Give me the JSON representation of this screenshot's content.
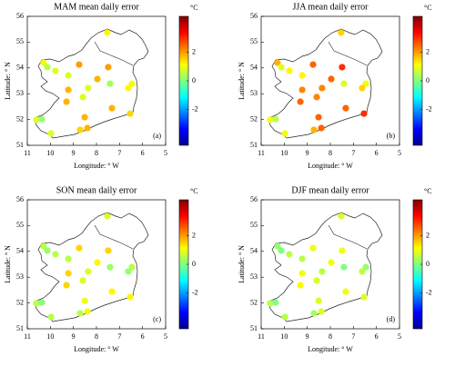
{
  "chart_data": [
    {
      "type": "scatter",
      "title": "MAM mean daily error",
      "xlabel": "Longitude: ° W",
      "ylabel": "Latitude: ° N",
      "annotation": "(a)",
      "colorbar_label": "°C",
      "colormap": "jet",
      "x": [
        7.53,
        10.29,
        10.13,
        9.78,
        8.75,
        7.49,
        9.22,
        7.96,
        6.46,
        6.62,
        7.41,
        8.36,
        9.22,
        8.59,
        9.3,
        7.33,
        6.54,
        8.51,
        10.61,
        10.37,
        9.97,
        8.71,
        8.39
      ],
      "y": [
        55.37,
        54.2,
        54.03,
        53.89,
        54.13,
        54.03,
        53.71,
        53.57,
        53.39,
        53.22,
        53.39,
        53.22,
        53.15,
        52.87,
        52.69,
        52.44,
        52.23,
        52.09,
        51.99,
        52.02,
        51.46,
        51.6,
        51.67
      ],
      "values": [
        1.2,
        1.0,
        0.5,
        0.8,
        2.0,
        2.0,
        0.8,
        1.8,
        1.0,
        1.2,
        0.3,
        0.8,
        1.8,
        0.8,
        1.8,
        1.8,
        1.5,
        1.8,
        0.8,
        0.2,
        0.8,
        1.5,
        1.8
      ],
      "xlim": [
        11,
        5
      ],
      "ylim": [
        51,
        56
      ],
      "xticks": [
        11,
        10,
        9,
        8,
        7,
        6,
        5
      ],
      "yticks": [
        51,
        52,
        53,
        54,
        55,
        56
      ],
      "clim": [
        -4.5,
        4.5
      ],
      "cticks": [
        -2,
        0,
        2
      ]
    },
    {
      "type": "scatter",
      "title": "JJA mean daily error",
      "xlabel": "Longitude: ° W",
      "ylabel": "Latitude: ° N",
      "annotation": "(b)",
      "colorbar_label": "°C",
      "colormap": "jet",
      "x": [
        7.53,
        10.29,
        10.13,
        9.78,
        8.75,
        7.49,
        9.22,
        7.96,
        6.46,
        6.62,
        7.41,
        8.36,
        9.22,
        8.59,
        9.3,
        7.33,
        6.54,
        8.51,
        10.61,
        10.37,
        9.97,
        8.71,
        8.39
      ],
      "y": [
        55.37,
        54.2,
        54.03,
        53.89,
        54.13,
        54.03,
        53.71,
        53.57,
        53.39,
        53.22,
        53.39,
        53.22,
        53.15,
        52.87,
        52.69,
        52.44,
        52.23,
        52.09,
        51.99,
        52.02,
        51.46,
        51.6,
        51.67
      ],
      "values": [
        1.5,
        1.8,
        0.8,
        1.2,
        2.5,
        3.0,
        1.2,
        2.5,
        1.0,
        1.5,
        0.8,
        2.2,
        2.2,
        2.2,
        2.5,
        2.5,
        3.0,
        2.5,
        1.0,
        0.5,
        1.0,
        1.8,
        2.5
      ],
      "xlim": [
        11,
        5
      ],
      "ylim": [
        51,
        56
      ],
      "xticks": [
        11,
        10,
        9,
        8,
        7,
        6,
        5
      ],
      "yticks": [
        51,
        52,
        53,
        54,
        55,
        56
      ],
      "clim": [
        -4.5,
        4.5
      ],
      "cticks": [
        -2,
        0,
        2
      ]
    },
    {
      "type": "scatter",
      "title": "SON mean daily error",
      "xlabel": "Longitude: ° W",
      "ylabel": "Latitude: ° N",
      "annotation": "(c)",
      "colorbar_label": "°C",
      "colormap": "jet",
      "x": [
        7.53,
        10.29,
        10.13,
        9.78,
        8.75,
        7.49,
        9.22,
        7.96,
        6.46,
        6.62,
        7.41,
        8.36,
        9.22,
        8.59,
        9.3,
        7.33,
        6.54,
        8.51,
        10.61,
        10.37,
        9.97,
        8.71,
        8.39
      ],
      "y": [
        55.37,
        54.2,
        54.03,
        53.89,
        54.13,
        54.03,
        53.71,
        53.57,
        53.39,
        53.22,
        53.39,
        53.22,
        53.15,
        52.87,
        52.69,
        52.44,
        52.23,
        52.09,
        51.99,
        52.02,
        51.46,
        51.6,
        51.67
      ],
      "values": [
        0.8,
        0.5,
        0.2,
        0.5,
        1.5,
        1.5,
        0.5,
        1.2,
        0.5,
        0.2,
        0.2,
        0.8,
        1.5,
        0.8,
        1.5,
        1.2,
        1.2,
        1.0,
        0.5,
        0.0,
        0.5,
        0.5,
        1.0
      ],
      "xlim": [
        11,
        5
      ],
      "ylim": [
        51,
        56
      ],
      "xticks": [
        11,
        10,
        9,
        8,
        7,
        6,
        5
      ],
      "yticks": [
        51,
        52,
        53,
        54,
        55,
        56
      ],
      "clim": [
        -4.5,
        4.5
      ],
      "cticks": [
        -2,
        0,
        2
      ]
    },
    {
      "type": "scatter",
      "title": "DJF mean daily error",
      "xlabel": "Longitude: ° W",
      "ylabel": "Latitude: ° N",
      "annotation": "(d)",
      "colorbar_label": "°C",
      "colormap": "jet",
      "x": [
        7.53,
        10.29,
        10.13,
        9.78,
        8.75,
        7.49,
        9.22,
        7.96,
        6.46,
        6.62,
        7.41,
        8.36,
        9.22,
        8.59,
        9.3,
        7.33,
        6.54,
        8.51,
        10.61,
        10.37,
        9.97,
        8.71,
        8.39
      ],
      "y": [
        55.37,
        54.2,
        54.03,
        53.89,
        54.13,
        54.03,
        53.71,
        53.57,
        53.39,
        53.22,
        53.39,
        53.22,
        53.15,
        52.87,
        52.69,
        52.44,
        52.23,
        52.09,
        51.99,
        52.02,
        51.46,
        51.6,
        51.67
      ],
      "values": [
        0.8,
        0.2,
        0.0,
        0.5,
        1.0,
        1.0,
        0.5,
        1.0,
        0.2,
        0.5,
        0.0,
        0.5,
        1.0,
        0.8,
        1.2,
        1.0,
        0.8,
        0.8,
        0.5,
        0.0,
        0.5,
        0.3,
        0.8
      ],
      "xlim": [
        11,
        5
      ],
      "ylim": [
        51,
        56
      ],
      "xticks": [
        11,
        10,
        9,
        8,
        7,
        6,
        5
      ],
      "yticks": [
        51,
        52,
        53,
        54,
        55,
        56
      ],
      "clim": [
        -4.5,
        4.5
      ],
      "cticks": [
        -2,
        0,
        2
      ]
    }
  ]
}
